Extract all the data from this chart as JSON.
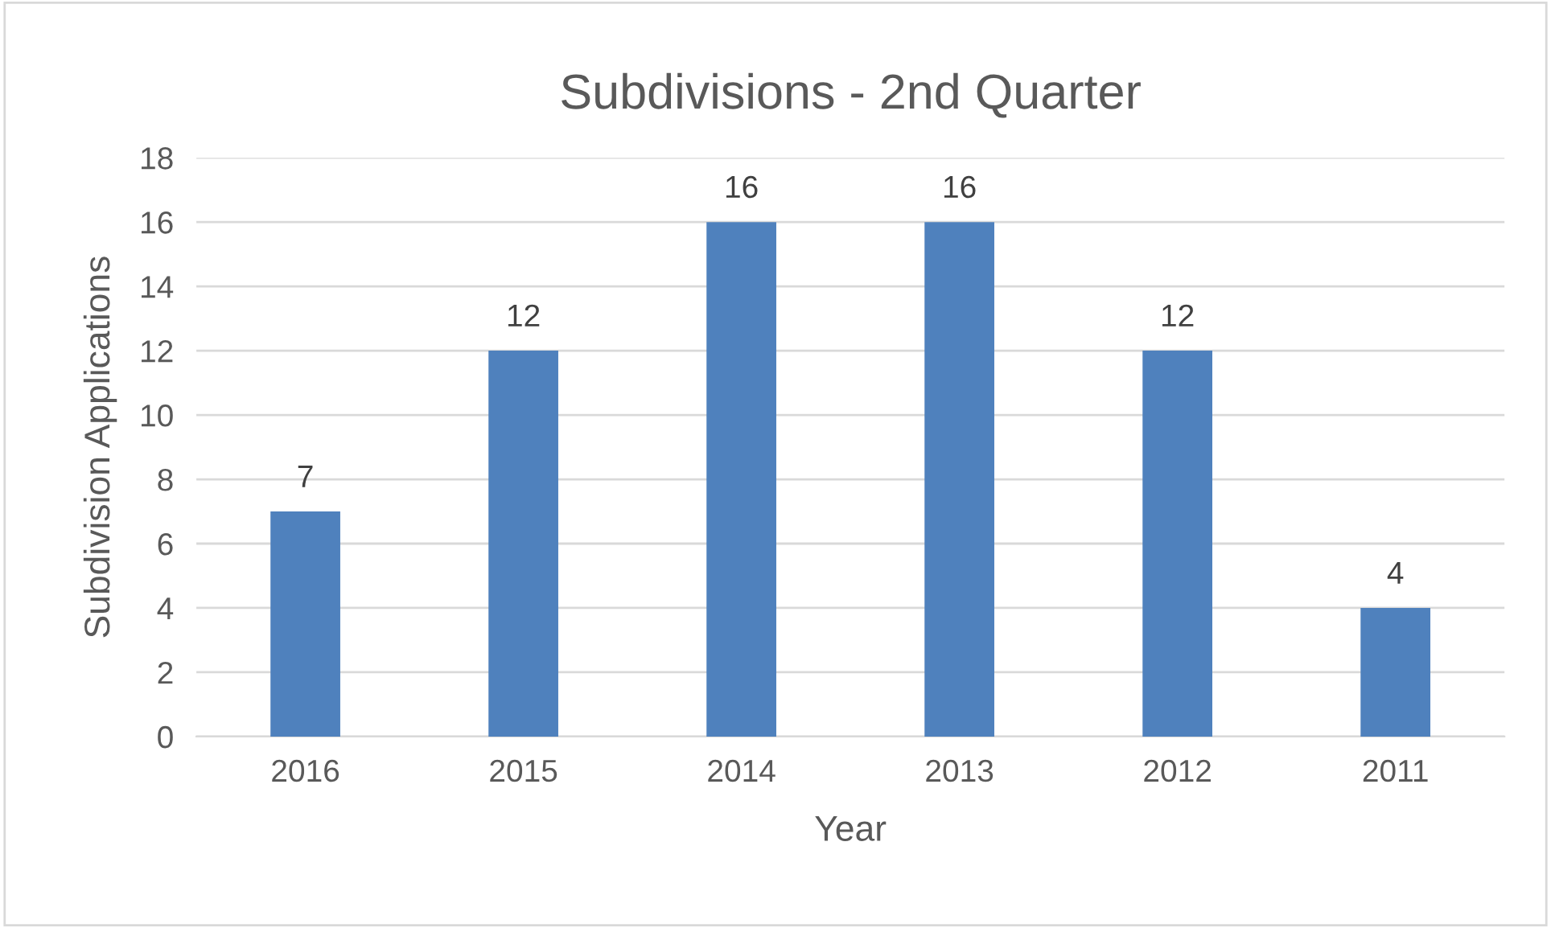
{
  "chart_data": {
    "type": "bar",
    "title": "Subdivisions - 2nd Quarter",
    "xlabel": "Year",
    "ylabel": "Subdivision Applications",
    "categories": [
      "2016",
      "2015",
      "2014",
      "2013",
      "2012",
      "2011"
    ],
    "values": [
      7,
      12,
      16,
      16,
      12,
      4
    ],
    "color": "#4f81bd",
    "ylim": [
      0,
      18
    ],
    "yticks": [
      0,
      2,
      4,
      6,
      8,
      10,
      12,
      14,
      16,
      18
    ],
    "grid": "y",
    "data_labels": true,
    "legend": false
  }
}
